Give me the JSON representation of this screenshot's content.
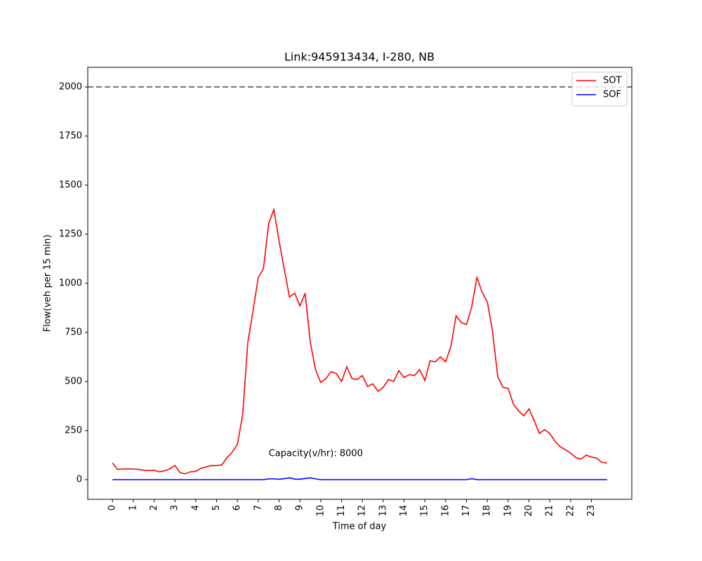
{
  "chart_data": {
    "type": "line",
    "title": "Link:945913434, I-280, NB",
    "xlabel": "Time of day",
    "ylabel": "Flow(veh per 15 min)",
    "x": [
      0,
      0.25,
      0.5,
      0.75,
      1,
      1.25,
      1.5,
      1.75,
      2,
      2.25,
      2.5,
      2.75,
      3,
      3.25,
      3.5,
      3.75,
      4,
      4.25,
      4.5,
      4.75,
      5,
      5.25,
      5.5,
      5.75,
      6,
      6.25,
      6.5,
      6.75,
      7,
      7.25,
      7.5,
      7.75,
      8,
      8.25,
      8.5,
      8.75,
      9,
      9.25,
      9.5,
      9.75,
      10,
      10.25,
      10.5,
      10.75,
      11,
      11.25,
      11.5,
      11.75,
      12,
      12.25,
      12.5,
      12.75,
      13,
      13.25,
      13.5,
      13.75,
      14,
      14.25,
      14.5,
      14.75,
      15,
      15.25,
      15.5,
      15.75,
      16,
      16.25,
      16.5,
      16.75,
      17,
      17.25,
      17.5,
      17.75,
      18,
      18.25,
      18.5,
      18.75,
      19,
      19.25,
      19.5,
      19.75,
      20,
      20.25,
      20.5,
      20.75,
      21,
      21.25,
      21.5,
      21.75,
      22,
      22.25,
      22.5,
      22.75,
      23,
      23.25,
      23.5,
      23.75
    ],
    "series": [
      {
        "name": "SOT",
        "color": "#ff0000",
        "values": [
          85,
          52,
          54,
          55,
          54,
          52,
          48,
          47,
          48,
          40,
          45,
          55,
          72,
          35,
          30,
          40,
          42,
          58,
          65,
          72,
          72,
          75,
          112,
          140,
          180,
          330,
          700,
          860,
          1030,
          1075,
          1305,
          1375,
          1215,
          1070,
          930,
          950,
          885,
          950,
          700,
          560,
          495,
          515,
          550,
          540,
          500,
          575,
          515,
          510,
          530,
          475,
          488,
          450,
          470,
          510,
          500,
          555,
          520,
          535,
          530,
          560,
          505,
          605,
          600,
          625,
          600,
          680,
          835,
          800,
          790,
          880,
          1030,
          955,
          905,
          755,
          525,
          470,
          465,
          385,
          350,
          325,
          360,
          300,
          235,
          255,
          235,
          195,
          168,
          152,
          135,
          112,
          105,
          125,
          115,
          110,
          88,
          85
        ]
      },
      {
        "name": "SOF",
        "color": "#0000ff",
        "values": [
          0,
          0,
          0,
          0,
          0,
          0,
          0,
          0,
          0,
          0,
          0,
          0,
          0,
          0,
          0,
          0,
          0,
          0,
          0,
          0,
          0,
          0,
          0,
          0,
          0,
          0,
          0,
          0,
          0,
          0,
          4,
          4,
          2,
          5,
          9,
          3,
          2,
          6,
          9,
          4,
          0,
          0,
          0,
          0,
          0,
          0,
          0,
          0,
          0,
          0,
          0,
          0,
          0,
          0,
          0,
          0,
          0,
          0,
          0,
          0,
          0,
          0,
          0,
          0,
          0,
          0,
          0,
          0,
          0,
          5,
          0,
          0,
          0,
          0,
          0,
          0,
          0,
          0,
          0,
          0,
          0,
          0,
          0,
          0,
          0,
          0,
          0,
          0,
          0,
          0,
          0,
          0,
          0,
          0,
          0,
          0
        ]
      }
    ],
    "reference_line": {
      "value": 2000,
      "color": "#708090",
      "style": "dashed"
    },
    "annotation": {
      "text": "Capacity(v/hr): 8000",
      "x": 7.5,
      "y": 100
    },
    "xlim": [
      -1.1875,
      24.9375
    ],
    "ylim": [
      -100,
      2100
    ],
    "xticks": [
      0,
      1,
      2,
      3,
      4,
      5,
      6,
      7,
      8,
      9,
      10,
      11,
      12,
      13,
      14,
      15,
      16,
      17,
      18,
      19,
      20,
      21,
      22,
      23
    ],
    "yticks": [
      0,
      250,
      500,
      750,
      1000,
      1250,
      1500,
      1750,
      2000
    ],
    "legend": "upper right",
    "grid": false
  }
}
